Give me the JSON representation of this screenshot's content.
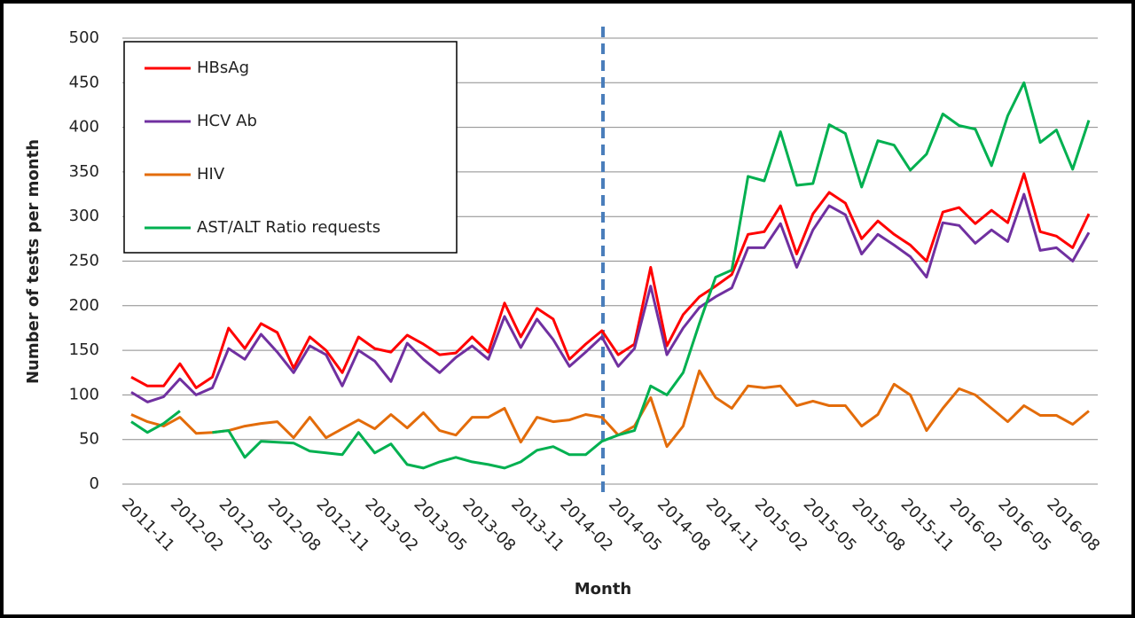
{
  "chart_data": {
    "type": "line",
    "x_label": "Month",
    "y_label": "Number of tests per month",
    "categories": [
      "2011-11",
      null,
      null,
      "2012-02",
      null,
      null,
      "2012-05",
      null,
      null,
      "2012-08",
      null,
      null,
      "2012-11",
      null,
      null,
      "2013-02",
      null,
      null,
      "2013-05",
      null,
      null,
      "2013-08",
      null,
      null,
      "2013-11",
      null,
      null,
      "2014-02",
      null,
      null,
      "2014-05",
      null,
      null,
      "2014-08",
      null,
      null,
      "2014-11",
      null,
      null,
      "2015-02",
      null,
      null,
      "2015-05",
      null,
      null,
      "2015-08",
      null,
      null,
      "2015-11",
      null,
      null,
      "2016-02",
      null,
      null,
      "2016-05",
      null,
      null,
      "2016-08",
      null,
      null
    ],
    "series": [
      {
        "name": "HBsAg",
        "color": "#ff0000",
        "values": [
          120,
          110,
          110,
          135,
          108,
          120,
          175,
          152,
          180,
          170,
          130,
          165,
          150,
          125,
          165,
          152,
          148,
          167,
          157,
          145,
          147,
          165,
          148,
          203,
          165,
          197,
          185,
          140,
          157,
          172,
          145,
          157,
          243,
          155,
          190,
          210,
          222,
          235,
          280,
          283,
          312,
          258,
          303,
          327,
          315,
          275,
          295,
          280,
          268,
          250,
          305,
          310,
          292,
          307,
          293,
          348,
          283,
          278,
          265,
          303
        ]
      },
      {
        "name": "HCV Ab",
        "color": "#7030a0",
        "values": [
          103,
          92,
          98,
          118,
          100,
          108,
          152,
          140,
          168,
          148,
          125,
          155,
          145,
          110,
          150,
          138,
          115,
          158,
          140,
          125,
          142,
          155,
          140,
          188,
          153,
          185,
          162,
          132,
          148,
          165,
          132,
          152,
          222,
          145,
          175,
          198,
          210,
          220,
          265,
          265,
          292,
          243,
          285,
          312,
          302,
          258,
          280,
          268,
          255,
          232,
          293,
          290,
          270,
          285,
          272,
          325,
          262,
          265,
          250,
          282
        ]
      },
      {
        "name": "HIV",
        "color": "#e36c0a",
        "values": [
          78,
          70,
          65,
          75,
          57,
          58,
          60,
          65,
          68,
          70,
          52,
          75,
          52,
          62,
          72,
          62,
          78,
          63,
          80,
          60,
          55,
          75,
          75,
          85,
          47,
          75,
          70,
          72,
          78,
          75,
          55,
          65,
          97,
          42,
          65,
          127,
          97,
          85,
          110,
          108,
          110,
          88,
          93,
          88,
          88,
          65,
          78,
          112,
          100,
          60,
          85,
          107,
          100,
          85,
          70,
          88,
          77,
          77,
          67,
          82
        ]
      },
      {
        "name": "AST/ALT Ratio requests",
        "color": "#00b050",
        "values": [
          70,
          58,
          68,
          82,
          null,
          58,
          60,
          30,
          48,
          47,
          46,
          37,
          35,
          33,
          58,
          35,
          45,
          22,
          18,
          25,
          30,
          25,
          22,
          18,
          25,
          38,
          42,
          33,
          33,
          48,
          55,
          60,
          110,
          100,
          125,
          180,
          232,
          240,
          345,
          340,
          395,
          335,
          337,
          403,
          393,
          333,
          385,
          380,
          352,
          370,
          415,
          402,
          398,
          357,
          413,
          450,
          383,
          397,
          353,
          408
        ]
      }
    ],
    "ylim": [
      0,
      500
    ],
    "yticks": [
      0,
      50,
      100,
      150,
      200,
      250,
      300,
      350,
      400,
      450,
      500
    ],
    "grid": true,
    "legend": "top-left"
  }
}
